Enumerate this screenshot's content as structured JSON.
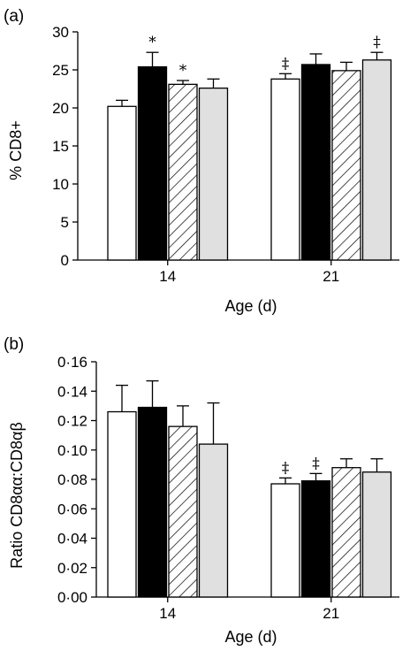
{
  "chart_data": [
    {
      "type": "bar",
      "panel_label": "(a)",
      "title": "",
      "xlabel": "Age (d)",
      "ylabel": "% CD8+",
      "ylim": [
        0,
        30
      ],
      "yticks": [
        0,
        5,
        10,
        15,
        20,
        25,
        30
      ],
      "ytick_labels": [
        "0",
        "5",
        "10",
        "15",
        "20",
        "25",
        "30"
      ],
      "categories": [
        "14",
        "21"
      ],
      "series": [
        {
          "style": "white",
          "values": [
            20.2,
            23.8
          ],
          "errors": [
            0.8,
            0.7
          ],
          "annotations": [
            "",
            "‡"
          ]
        },
        {
          "style": "black",
          "values": [
            25.4,
            25.7
          ],
          "errors": [
            1.9,
            1.4
          ],
          "annotations": [
            "*",
            ""
          ]
        },
        {
          "style": "hatched",
          "values": [
            23.1,
            24.9
          ],
          "errors": [
            0.5,
            1.1
          ],
          "annotations": [
            "*",
            ""
          ]
        },
        {
          "style": "grey",
          "values": [
            22.6,
            26.3
          ],
          "errors": [
            1.2,
            1.0
          ],
          "annotations": [
            "",
            "‡"
          ]
        }
      ],
      "grid": false,
      "legend": "none"
    },
    {
      "type": "bar",
      "panel_label": "(b)",
      "title": "",
      "xlabel": "Age (d)",
      "ylabel": "Ratio CD8αα:CD8αβ",
      "ylim": [
        0,
        0.16
      ],
      "yticks": [
        0,
        0.02,
        0.04,
        0.06,
        0.08,
        0.1,
        0.12,
        0.14,
        0.16
      ],
      "ytick_labels": [
        "0·00",
        "0·02",
        "0·04",
        "0·06",
        "0·08",
        "0·10",
        "0·12",
        "0·14",
        "0·16"
      ],
      "categories": [
        "14",
        "21"
      ],
      "series": [
        {
          "style": "white",
          "values": [
            0.126,
            0.077
          ],
          "errors": [
            0.018,
            0.004
          ],
          "annotations": [
            "",
            "‡"
          ]
        },
        {
          "style": "black",
          "values": [
            0.129,
            0.079
          ],
          "errors": [
            0.018,
            0.005
          ],
          "annotations": [
            "",
            "‡"
          ]
        },
        {
          "style": "hatched",
          "values": [
            0.116,
            0.088
          ],
          "errors": [
            0.014,
            0.006
          ],
          "annotations": [
            "",
            ""
          ]
        },
        {
          "style": "grey",
          "values": [
            0.104,
            0.085
          ],
          "errors": [
            0.028,
            0.009
          ],
          "annotations": [
            "",
            ""
          ]
        }
      ],
      "grid": false,
      "legend": "none"
    }
  ],
  "colors": {
    "white": "#ffffff",
    "black": "#000000",
    "grey": "#e0e0e0",
    "stroke": "#000000"
  }
}
